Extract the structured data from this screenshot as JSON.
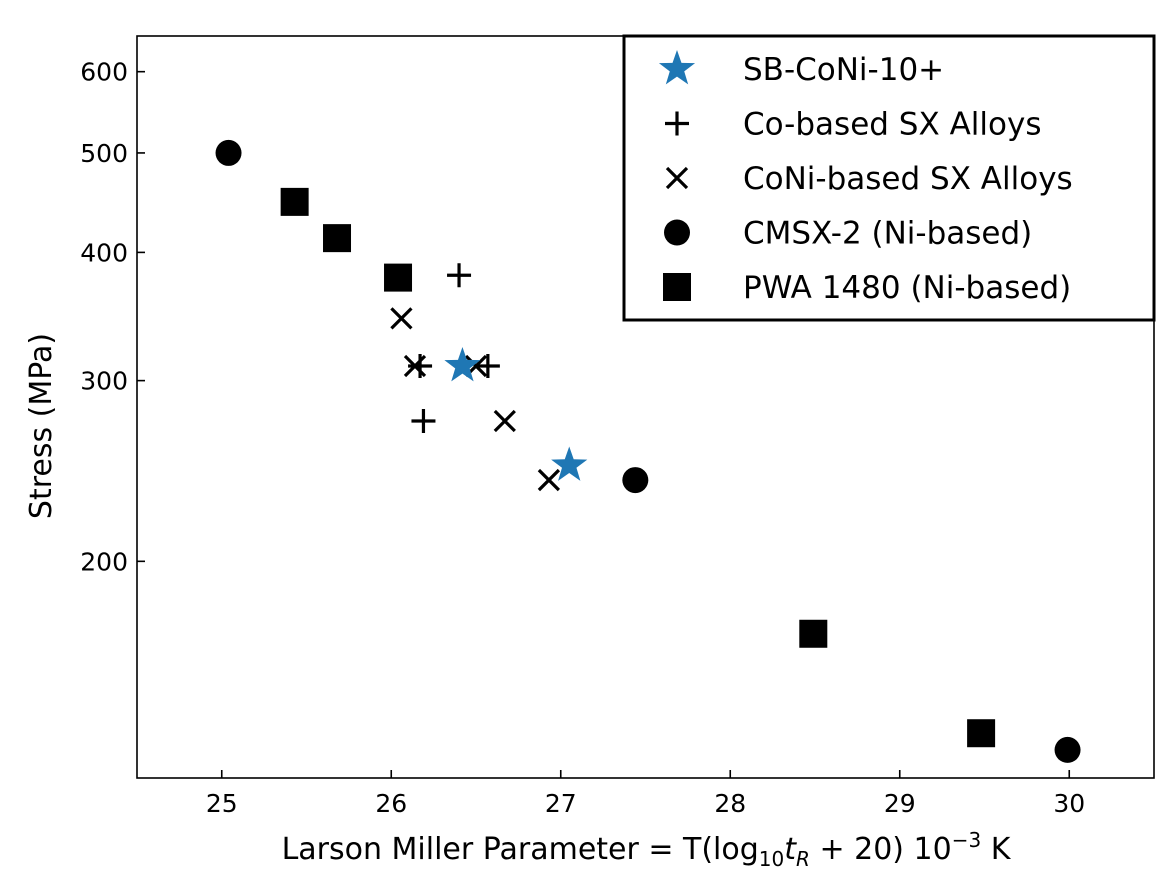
{
  "chart_data": {
    "type": "scatter",
    "xlabel_parts": {
      "main": "Larson Miller Parameter = T(log",
      "sub1": "10",
      "var": "t",
      "sub2": "R",
      "after": " + 20) 10",
      "exp": "−3",
      "unit": " K"
    },
    "ylabel": "Stress (MPa)",
    "xlim": [
      24.5,
      30.5
    ],
    "ylim": [
      123,
      650
    ],
    "yscale": "log",
    "grid": false,
    "legend_position": "top-right",
    "xticks": [
      25,
      26,
      27,
      28,
      29,
      30
    ],
    "xtick_labels": [
      "25",
      "26",
      "27",
      "28",
      "29",
      "30"
    ],
    "yticks": [
      200,
      300,
      400,
      500,
      600
    ],
    "ytick_labels": [
      "200",
      "300",
      "400",
      "500",
      "600"
    ],
    "series": [
      {
        "name": "SB-CoNi-10+",
        "marker": "star",
        "color": "#1f77b4",
        "points": [
          [
            26.42,
            310
          ],
          [
            27.05,
            248
          ]
        ]
      },
      {
        "name": "Co-based SX Alloys",
        "marker": "plus",
        "color": "#000000",
        "points": [
          [
            26.4,
            380
          ],
          [
            26.17,
            310
          ],
          [
            26.57,
            310
          ],
          [
            26.19,
            274
          ]
        ]
      },
      {
        "name": "CoNi-based SX Alloys",
        "marker": "x",
        "color": "#000000",
        "points": [
          [
            26.06,
            345
          ],
          [
            26.14,
            310
          ],
          [
            26.5,
            310
          ],
          [
            26.67,
            274
          ],
          [
            26.93,
            240
          ]
        ]
      },
      {
        "name": "CMSX-2 (Ni-based)",
        "marker": "circle",
        "color": "#000000",
        "points": [
          [
            25.04,
            500
          ],
          [
            27.44,
            240
          ],
          [
            29.99,
            131
          ]
        ]
      },
      {
        "name": "PWA 1480 (Ni-based)",
        "marker": "square",
        "color": "#000000",
        "points": [
          [
            25.43,
            448
          ],
          [
            25.68,
            413
          ],
          [
            26.04,
            378
          ],
          [
            28.49,
            170
          ],
          [
            29.48,
            136
          ]
        ]
      }
    ]
  }
}
